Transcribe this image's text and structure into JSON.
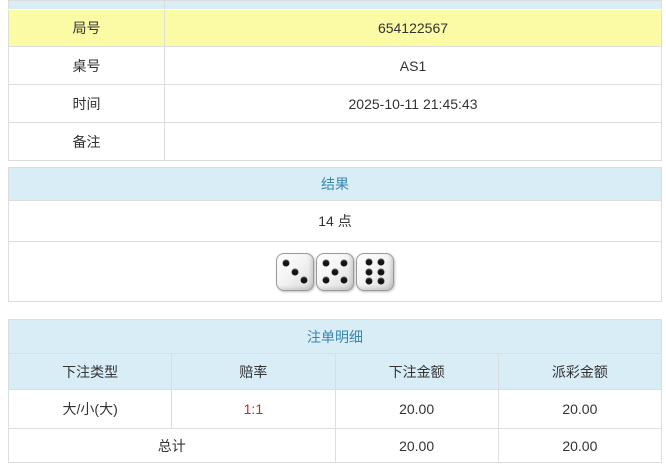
{
  "colors": {
    "header_bg": "#d9edf7",
    "header_text": "#3a87ad",
    "highlight_row_bg": "#fbfba5",
    "border": "#dddddd",
    "text": "#333333",
    "odds_red": "#e61b1b"
  },
  "info_table": {
    "rows": [
      {
        "label": "局号",
        "value": "654122567",
        "highlight": true
      },
      {
        "label": "桌号",
        "value": "AS1",
        "highlight": false
      },
      {
        "label": "时间",
        "value": "2025-10-11 21:45:43",
        "highlight": false
      },
      {
        "label": "备注",
        "value": "",
        "highlight": false
      }
    ]
  },
  "result_section": {
    "title": "结果",
    "points": "14 点",
    "dice": [
      3,
      5,
      6
    ],
    "dice_total": 14
  },
  "bets_section": {
    "title": "注单明细",
    "columns": [
      "下注类型",
      "赔率",
      "下注金额",
      "派彩金额"
    ],
    "rows": [
      {
        "bet_type": "大/小(大)",
        "odds": "1:1",
        "bet_amount": "20.00",
        "payout_amount": "20.00"
      }
    ],
    "total": {
      "label": "总计",
      "bet_amount": "20.00",
      "payout_amount": "20.00"
    }
  }
}
